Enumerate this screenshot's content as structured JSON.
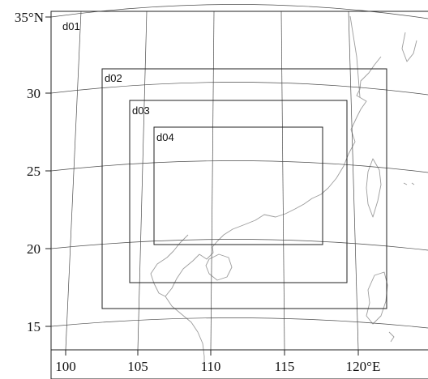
{
  "map": {
    "lat_labels": [
      "35°N",
      "30",
      "25",
      "20",
      "15"
    ],
    "lon_labels": [
      "100",
      "105",
      "110",
      "115",
      "120°E"
    ],
    "domains": [
      "d01",
      "d02",
      "d03",
      "d04"
    ]
  },
  "colors": {
    "coastline": "#9c9c9c",
    "grid": "#4d4d4d",
    "domain_box": "#222222"
  }
}
